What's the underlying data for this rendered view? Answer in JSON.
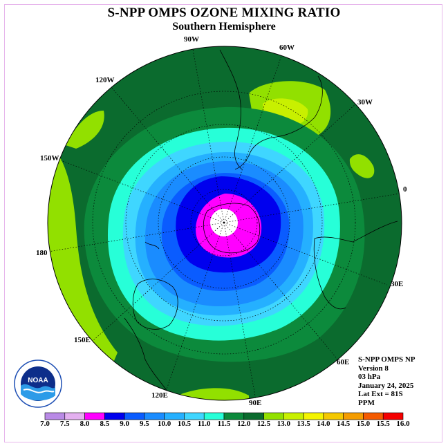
{
  "title": "S-NPP OMPS OZONE MIXING RATIO",
  "subtitle": "Southern Hemisphere",
  "longitude_labels": [
    {
      "text": "90W"
    },
    {
      "text": "60W"
    },
    {
      "text": "30W"
    },
    {
      "text": "0"
    },
    {
      "text": "30E"
    },
    {
      "text": "60E"
    },
    {
      "text": "90E"
    },
    {
      "text": "120E"
    },
    {
      "text": "150E"
    },
    {
      "text": "180"
    },
    {
      "text": "150W"
    },
    {
      "text": "120W"
    }
  ],
  "info": {
    "instrument": "S-NPP OMPS NP",
    "version": "Version 8",
    "level": "03 hPa",
    "date": "January 24, 2025",
    "lat_ext": "Lat Ext = 81S",
    "units": "PPM"
  },
  "logo_text": "NOAA",
  "colorbar": {
    "ticks": [
      "7.0",
      "7.5",
      "8.0",
      "8.5",
      "9.0",
      "9.5",
      "10.0",
      "10.5",
      "11.0",
      "11.5",
      "12.0",
      "12.5",
      "13.0",
      "13.5",
      "14.0",
      "14.5",
      "15.0",
      "15.5",
      "16.0"
    ],
    "colors": [
      "#b98ae6",
      "#e4b0f0",
      "#ff00ff",
      "#0000ee",
      "#0a5cff",
      "#1a8cff",
      "#25b0ff",
      "#3fd6ff",
      "#27ffd8",
      "#0c8a3c",
      "#0b6b2e",
      "#92e000",
      "#c8f000",
      "#f4f400",
      "#f4c800",
      "#f49c00",
      "#f45a00",
      "#f40000",
      "#8a5a3c"
    ]
  },
  "colors": {
    "frame": "#e7b6ec",
    "ocean_high": "#0b6b2e"
  }
}
